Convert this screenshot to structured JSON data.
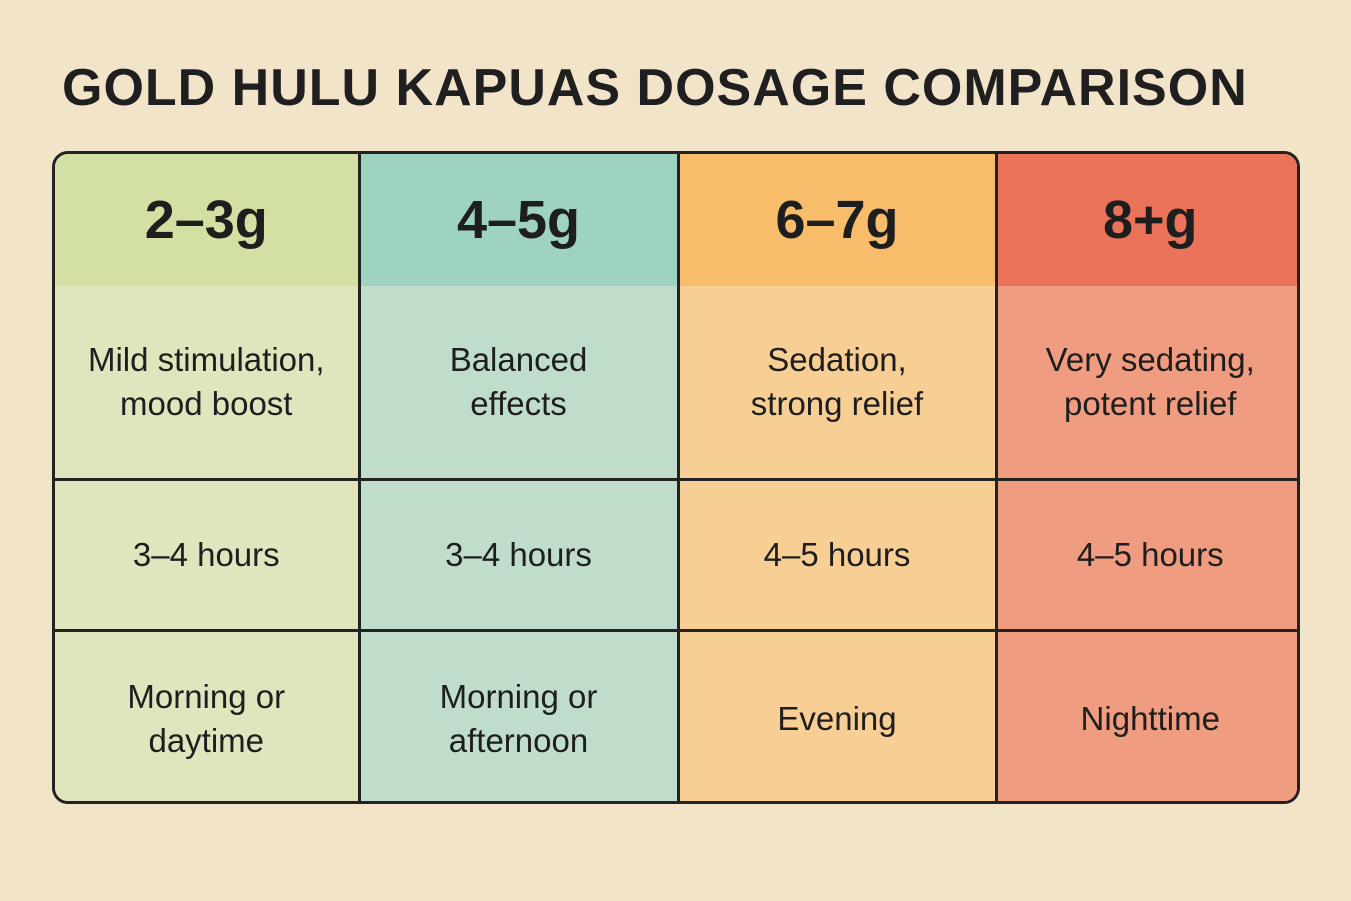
{
  "title": "GOLD HULU KAPUAS DOSAGE COMPARISON",
  "table": {
    "header": [
      "2–3g",
      "4–5g",
      "6–7g",
      "8+g"
    ],
    "rows": [
      [
        "Mild stimulation, mood boost",
        "Balanced effects",
        "Sedation, strong relief",
        "Very sedating, potent relief"
      ],
      [
        "3–4 hours",
        "3–4 hours",
        "4–5 hours",
        "4–5 hours"
      ],
      [
        "Morning or daytime",
        "Morning or afternoon",
        "Evening",
        "Nighttime"
      ]
    ]
  }
}
